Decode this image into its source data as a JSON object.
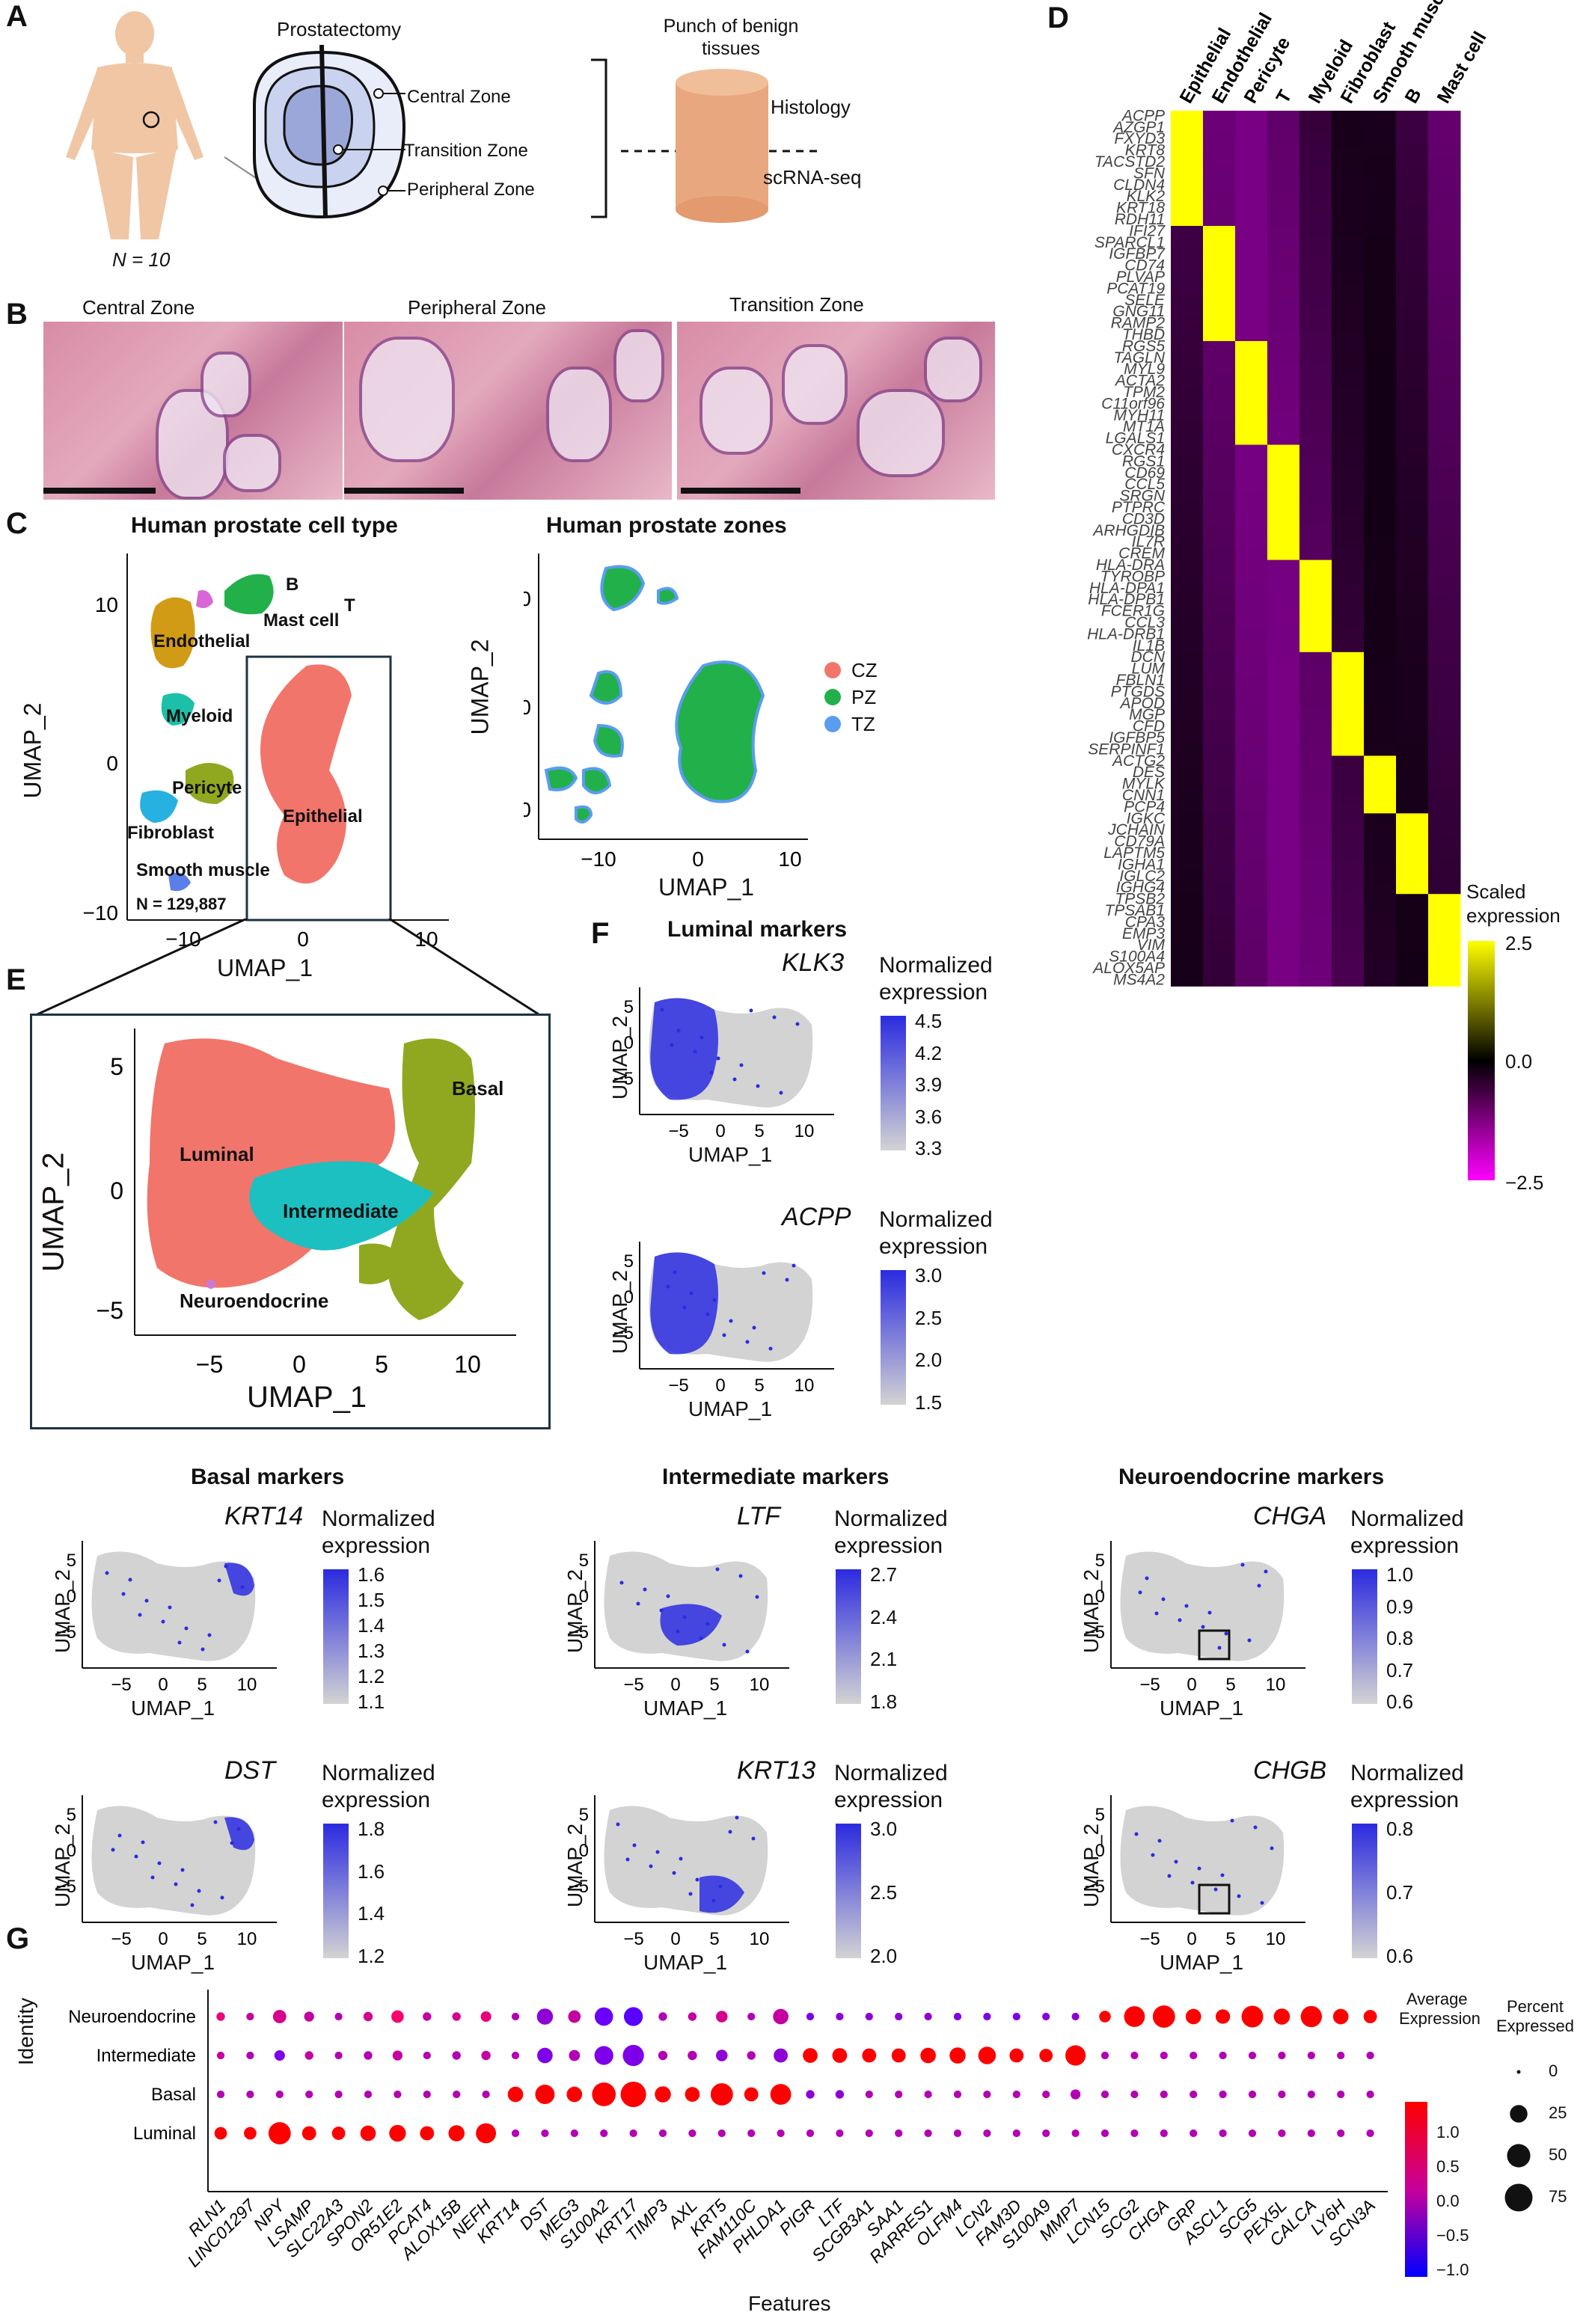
{
  "panels": {
    "A": {
      "letter": "A",
      "n_label": "N = 10",
      "prostatectomy": "Prostatectomy",
      "zones": [
        "Central Zone",
        "Transition Zone",
        "Peripheral Zone"
      ],
      "punch": "Punch of benign tissues",
      "histology": "Histology",
      "scrna": "scRNA-seq"
    },
    "B": {
      "letter": "B",
      "images": [
        "Central Zone",
        "Peripheral Zone",
        "Transition Zone"
      ]
    },
    "C": {
      "letter": "C",
      "left_title": "Human prostate cell type",
      "right_title": "Human prostate zones",
      "n_cells": "N = 129,887",
      "cell_labels": [
        "Endothelial",
        "B",
        "T",
        "Mast cell",
        "Myeloid",
        "Pericyte",
        "Fibroblast",
        "Epithelial",
        "Smooth muscle"
      ],
      "zone_legend": [
        {
          "label": "CZ",
          "color": "#f1756b"
        },
        {
          "label": "PZ",
          "color": "#22b04b"
        },
        {
          "label": "TZ",
          "color": "#5a9cf0"
        }
      ],
      "xlabel": "UMAP_1",
      "ylabel": "UMAP_2"
    },
    "D": {
      "letter": "D",
      "columns": [
        "Epithelial",
        "Endothelial",
        "Pericyte",
        "T",
        "Myeloid",
        "Fibroblast",
        "Smooth muscle",
        "B",
        "Mast cell"
      ],
      "genes": [
        "ACPP",
        "AZGP1",
        "FXYD3",
        "KRT8",
        "TACSTD2",
        "SFN",
        "CLDN4",
        "KLK2",
        "KRT18",
        "RDH11",
        "IFI27",
        "SPARCL1",
        "IGFBP7",
        "CD74",
        "PLVAP",
        "PCAT19",
        "SELE",
        "GNG11",
        "RAMP2",
        "THBD",
        "RGS5",
        "TAGLN",
        "MYL9",
        "ACTA2",
        "TPM2",
        "C11orf96",
        "MYH11",
        "MT1A",
        "LGALS1",
        "CXCR4",
        "RGS1",
        "CD69",
        "CCL5",
        "SRGN",
        "PTPRC",
        "CD3D",
        "ARHGDIB",
        "IL7R",
        "CREM",
        "HLA-DRA",
        "TYROBP",
        "HLA-DPA1",
        "HLA-DPB1",
        "FCER1G",
        "CCL3",
        "HLA-DRB1",
        "IL1B",
        "DCN",
        "LUM",
        "FBLN1",
        "PTGDS",
        "APOD",
        "MGP",
        "CFD",
        "IGFBP5",
        "SERPINF1",
        "ACTG2",
        "DES",
        "MYLK",
        "CNN1",
        "PCP4",
        "IGKC",
        "JCHAIN",
        "CD79A",
        "LAPTM5",
        "IGHA1",
        "IGLC2",
        "IGHG4",
        "TPSB2",
        "TPSAB1",
        "CPA3",
        "EMP3",
        "VIM",
        "S100A4",
        "ALOX5AP",
        "MS4A2"
      ],
      "legend_title": "Scaled expression",
      "legend_ticks": [
        "2.5",
        "0.0",
        "−2.5"
      ]
    },
    "E": {
      "letter": "E",
      "labels": [
        "Luminal",
        "Basal",
        "Intermediate",
        "Neuroendocrine"
      ],
      "xlabel": "UMAP_1",
      "ylabel": "UMAP_2"
    },
    "F": {
      "letter": "F",
      "luminal_title": "Luminal markers",
      "basal_title": "Basal markers",
      "intermediate_title": "Intermediate markers",
      "neuro_title": "Neuroendocrine markers",
      "legend_title_1": "Normalized",
      "legend_title_2": "expression",
      "xlabel": "UMAP_1",
      "ylabel": "UMAP_2",
      "plots": [
        {
          "gene": "KLK3",
          "ticks": [
            "4.5",
            "4.2",
            "3.9",
            "3.6",
            "3.3"
          ]
        },
        {
          "gene": "ACPP",
          "ticks": [
            "3.0",
            "2.5",
            "2.0",
            "1.5"
          ]
        },
        {
          "gene": "KRT14",
          "ticks": [
            "1.6",
            "1.5",
            "1.4",
            "1.3",
            "1.2",
            "1.1"
          ]
        },
        {
          "gene": "DST",
          "ticks": [
            "1.8",
            "1.6",
            "1.4",
            "1.2"
          ]
        },
        {
          "gene": "LTF",
          "ticks": [
            "2.7",
            "2.4",
            "2.1",
            "1.8"
          ]
        },
        {
          "gene": "KRT13",
          "ticks": [
            "3.0",
            "2.5",
            "2.0"
          ]
        },
        {
          "gene": "CHGA",
          "ticks": [
            "1.0",
            "0.9",
            "0.8",
            "0.7",
            "0.6"
          ]
        },
        {
          "gene": "CHGB",
          "ticks": [
            "0.8",
            "0.7",
            "0.6"
          ]
        }
      ]
    },
    "G": {
      "letter": "G",
      "ylabel": "Identity",
      "xlabel": "Features",
      "identities": [
        "Neuroendocrine",
        "Intermediate",
        "Basal",
        "Luminal"
      ],
      "features": [
        "RLN1",
        "LINC01297",
        "NPY",
        "LSAMP",
        "SLC22A3",
        "SPON2",
        "OR51E2",
        "PCAT4",
        "ALOX15B",
        "NEFH",
        "KRT14",
        "DST",
        "MEG3",
        "S100A2",
        "KRT17",
        "TIMP3",
        "AXL",
        "KRT5",
        "FAM110C",
        "PHLDA1",
        "PIGR",
        "LTF",
        "SCGB3A1",
        "SAA1",
        "RARRES1",
        "OLFM4",
        "LCN2",
        "FAM3D",
        "S100A9",
        "MMP7",
        "LCN15",
        "SCG2",
        "CHGA",
        "GRP",
        "ASCL1",
        "SCG5",
        "PEX5L",
        "CALCA",
        "LY6H",
        "SCN3A"
      ],
      "avg_title_1": "Average",
      "avg_title_2": "Expression",
      "avg_ticks": [
        "1.0",
        "0.5",
        "0.0",
        "−0.5",
        "−1.0"
      ],
      "pct_title_1": "Percent",
      "pct_title_2": "Expressed",
      "pct_ticks": [
        "0",
        "25",
        "50",
        "75"
      ]
    }
  },
  "chart_data": [
    {
      "type": "heatmap",
      "title": "",
      "x": [
        "Epithelial",
        "Endothelial",
        "Pericyte",
        "T",
        "Myeloid",
        "Fibroblast",
        "Smooth muscle",
        "B",
        "Mast cell"
      ],
      "y_gene_blocks": [
        {
          "group": "Epithelial",
          "genes": [
            "ACPP",
            "AZGP1",
            "FXYD3",
            "KRT8",
            "TACSTD2",
            "SFN",
            "CLDN4",
            "KLK2",
            "KRT18",
            "RDH11"
          ]
        },
        {
          "group": "Endothelial",
          "genes": [
            "IFI27",
            "SPARCL1",
            "IGFBP7",
            "CD74",
            "PLVAP",
            "PCAT19",
            "SELE",
            "GNG11",
            "RAMP2",
            "THBD"
          ]
        },
        {
          "group": "Pericyte",
          "genes": [
            "RGS5",
            "TAGLN",
            "MYL9",
            "ACTA2",
            "TPM2",
            "C11orf96",
            "MYH11",
            "MT1A",
            "LGALS1"
          ]
        },
        {
          "group": "T",
          "genes": [
            "CXCR4",
            "RGS1",
            "CD69",
            "CCL5",
            "SRGN",
            "PTPRC",
            "CD3D",
            "ARHGDIB",
            "IL7R",
            "CREM"
          ]
        },
        {
          "group": "Myeloid",
          "genes": [
            "HLA-DRA",
            "TYROBP",
            "HLA-DPA1",
            "HLA-DPB1",
            "FCER1G",
            "CCL3",
            "HLA-DRB1",
            "IL1B"
          ]
        },
        {
          "group": "Fibroblast",
          "genes": [
            "DCN",
            "LUM",
            "FBLN1",
            "PTGDS",
            "APOD",
            "MGP",
            "CFD",
            "IGFBP5",
            "SERPINF1"
          ]
        },
        {
          "group": "Smooth muscle",
          "genes": [
            "ACTG2",
            "DES",
            "MYLK",
            "CNN1",
            "PCP4"
          ]
        },
        {
          "group": "B",
          "genes": [
            "IGKC",
            "JCHAIN",
            "CD79A",
            "LAPTM5",
            "IGHA1",
            "IGLC2",
            "IGHG4"
          ]
        },
        {
          "group": "Mast cell",
          "genes": [
            "TPSB2",
            "TPSAB1",
            "CPA3",
            "EMP3",
            "VIM",
            "S100A4",
            "ALOX5AP",
            "MS4A2"
          ]
        }
      ],
      "color_range": [
        -2.5,
        2.5
      ]
    },
    {
      "type": "scatter",
      "title": "",
      "xlabel": "Features",
      "ylabel": "Identity",
      "y_categories": [
        "Luminal",
        "Basal",
        "Intermediate",
        "Neuroendocrine"
      ],
      "x_categories": [
        "RLN1",
        "LINC01297",
        "NPY",
        "LSAMP",
        "SLC22A3",
        "SPON2",
        "OR51E2",
        "PCAT4",
        "ALOX15B",
        "NEFH",
        "KRT14",
        "DST",
        "MEG3",
        "S100A2",
        "KRT17",
        "TIMP3",
        "AXL",
        "KRT5",
        "FAM110C",
        "PHLDA1",
        "PIGR",
        "LTF",
        "SCGB3A1",
        "SAA1",
        "RARRES1",
        "OLFM4",
        "LCN2",
        "FAM3D",
        "S100A9",
        "MMP7",
        "LCN15",
        "SCG2",
        "CHGA",
        "GRP",
        "ASCL1",
        "SCG5",
        "PEX5L",
        "CALCA",
        "LY6H",
        "SCN3A"
      ],
      "series": [
        {
          "name": "Neuroendocrine",
          "avg": [
            0.3,
            0.1,
            0.2,
            0.1,
            0.0,
            0.2,
            0.4,
            0.1,
            0.2,
            0.3,
            0.0,
            -0.2,
            0.1,
            -0.4,
            -0.5,
            0.0,
            0.1,
            0.2,
            0.0,
            0.1,
            -0.3,
            -0.2,
            -0.2,
            -0.2,
            -0.2,
            -0.3,
            -0.3,
            -0.3,
            -0.2,
            -0.2,
            1.0,
            1.2,
            1.2,
            1.1,
            1.1,
            1.2,
            1.1,
            1.2,
            1.1,
            1.0
          ],
          "pct": [
            3,
            2,
            12,
            5,
            2,
            4,
            10,
            3,
            3,
            6,
            2,
            20,
            10,
            28,
            30,
            3,
            3,
            8,
            2,
            18,
            2,
            2,
            2,
            2,
            2,
            2,
            2,
            2,
            2,
            2,
            8,
            38,
            45,
            18,
            15,
            42,
            20,
            40,
            18,
            12
          ]
        },
        {
          "name": "Intermediate",
          "avg": [
            0.1,
            0.0,
            -0.3,
            0.1,
            0.0,
            0.0,
            0.1,
            0.0,
            0.0,
            0.1,
            0.0,
            -0.3,
            0.0,
            -0.3,
            -0.3,
            0.0,
            0.0,
            -0.2,
            0.0,
            -0.2,
            1.0,
            1.0,
            1.0,
            1.1,
            1.0,
            1.1,
            1.1,
            1.0,
            1.0,
            1.1,
            0.0,
            0.0,
            0.0,
            0.0,
            0.0,
            0.0,
            0.0,
            0.0,
            0.0,
            0.0
          ],
          "pct": [
            2,
            2,
            6,
            3,
            2,
            3,
            5,
            2,
            3,
            4,
            2,
            18,
            7,
            30,
            40,
            4,
            4,
            8,
            3,
            14,
            16,
            16,
            14,
            14,
            18,
            20,
            25,
            14,
            12,
            36,
            2,
            2,
            2,
            2,
            2,
            2,
            2,
            2,
            2,
            2
          ]
        },
        {
          "name": "Basal",
          "avg": [
            0.0,
            0.0,
            0.0,
            0.0,
            0.0,
            0.0,
            0.0,
            0.0,
            0.0,
            0.0,
            1.1,
            1.2,
            1.1,
            1.2,
            1.2,
            1.1,
            1.1,
            1.2,
            1.1,
            1.1,
            -0.2,
            -0.2,
            0.0,
            0.0,
            0.0,
            0.0,
            0.0,
            0.0,
            0.0,
            0.0,
            0.0,
            0.0,
            0.0,
            0.0,
            0.0,
            0.0,
            0.0,
            0.0,
            0.0,
            0.0
          ],
          "pct": [
            2,
            2,
            2,
            2,
            2,
            2,
            2,
            2,
            2,
            2,
            18,
            32,
            18,
            52,
            62,
            20,
            16,
            45,
            14,
            38,
            3,
            3,
            2,
            2,
            2,
            2,
            2,
            2,
            2,
            5,
            2,
            2,
            2,
            2,
            2,
            2,
            2,
            2,
            2,
            2
          ]
        },
        {
          "name": "Luminal",
          "avg": [
            1.1,
            1.1,
            1.2,
            1.1,
            1.1,
            1.1,
            1.1,
            1.1,
            1.1,
            1.1,
            0.0,
            0.0,
            0.0,
            0.0,
            0.0,
            0.0,
            0.0,
            0.0,
            0.0,
            0.0,
            0.0,
            0.0,
            0.0,
            0.0,
            0.0,
            0.0,
            0.0,
            0.0,
            0.0,
            0.0,
            0.0,
            0.0,
            0.0,
            0.0,
            0.0,
            0.0,
            0.0,
            0.0,
            0.0,
            0.0
          ],
          "pct": [
            10,
            10,
            45,
            14,
            12,
            18,
            22,
            14,
            20,
            35,
            2,
            2,
            2,
            2,
            2,
            2,
            2,
            2,
            2,
            2,
            2,
            2,
            2,
            2,
            2,
            2,
            2,
            2,
            2,
            2,
            2,
            2,
            2,
            2,
            2,
            2,
            2,
            2,
            2,
            2
          ]
        }
      ],
      "color_range": [
        -1.0,
        1.0
      ]
    }
  ]
}
